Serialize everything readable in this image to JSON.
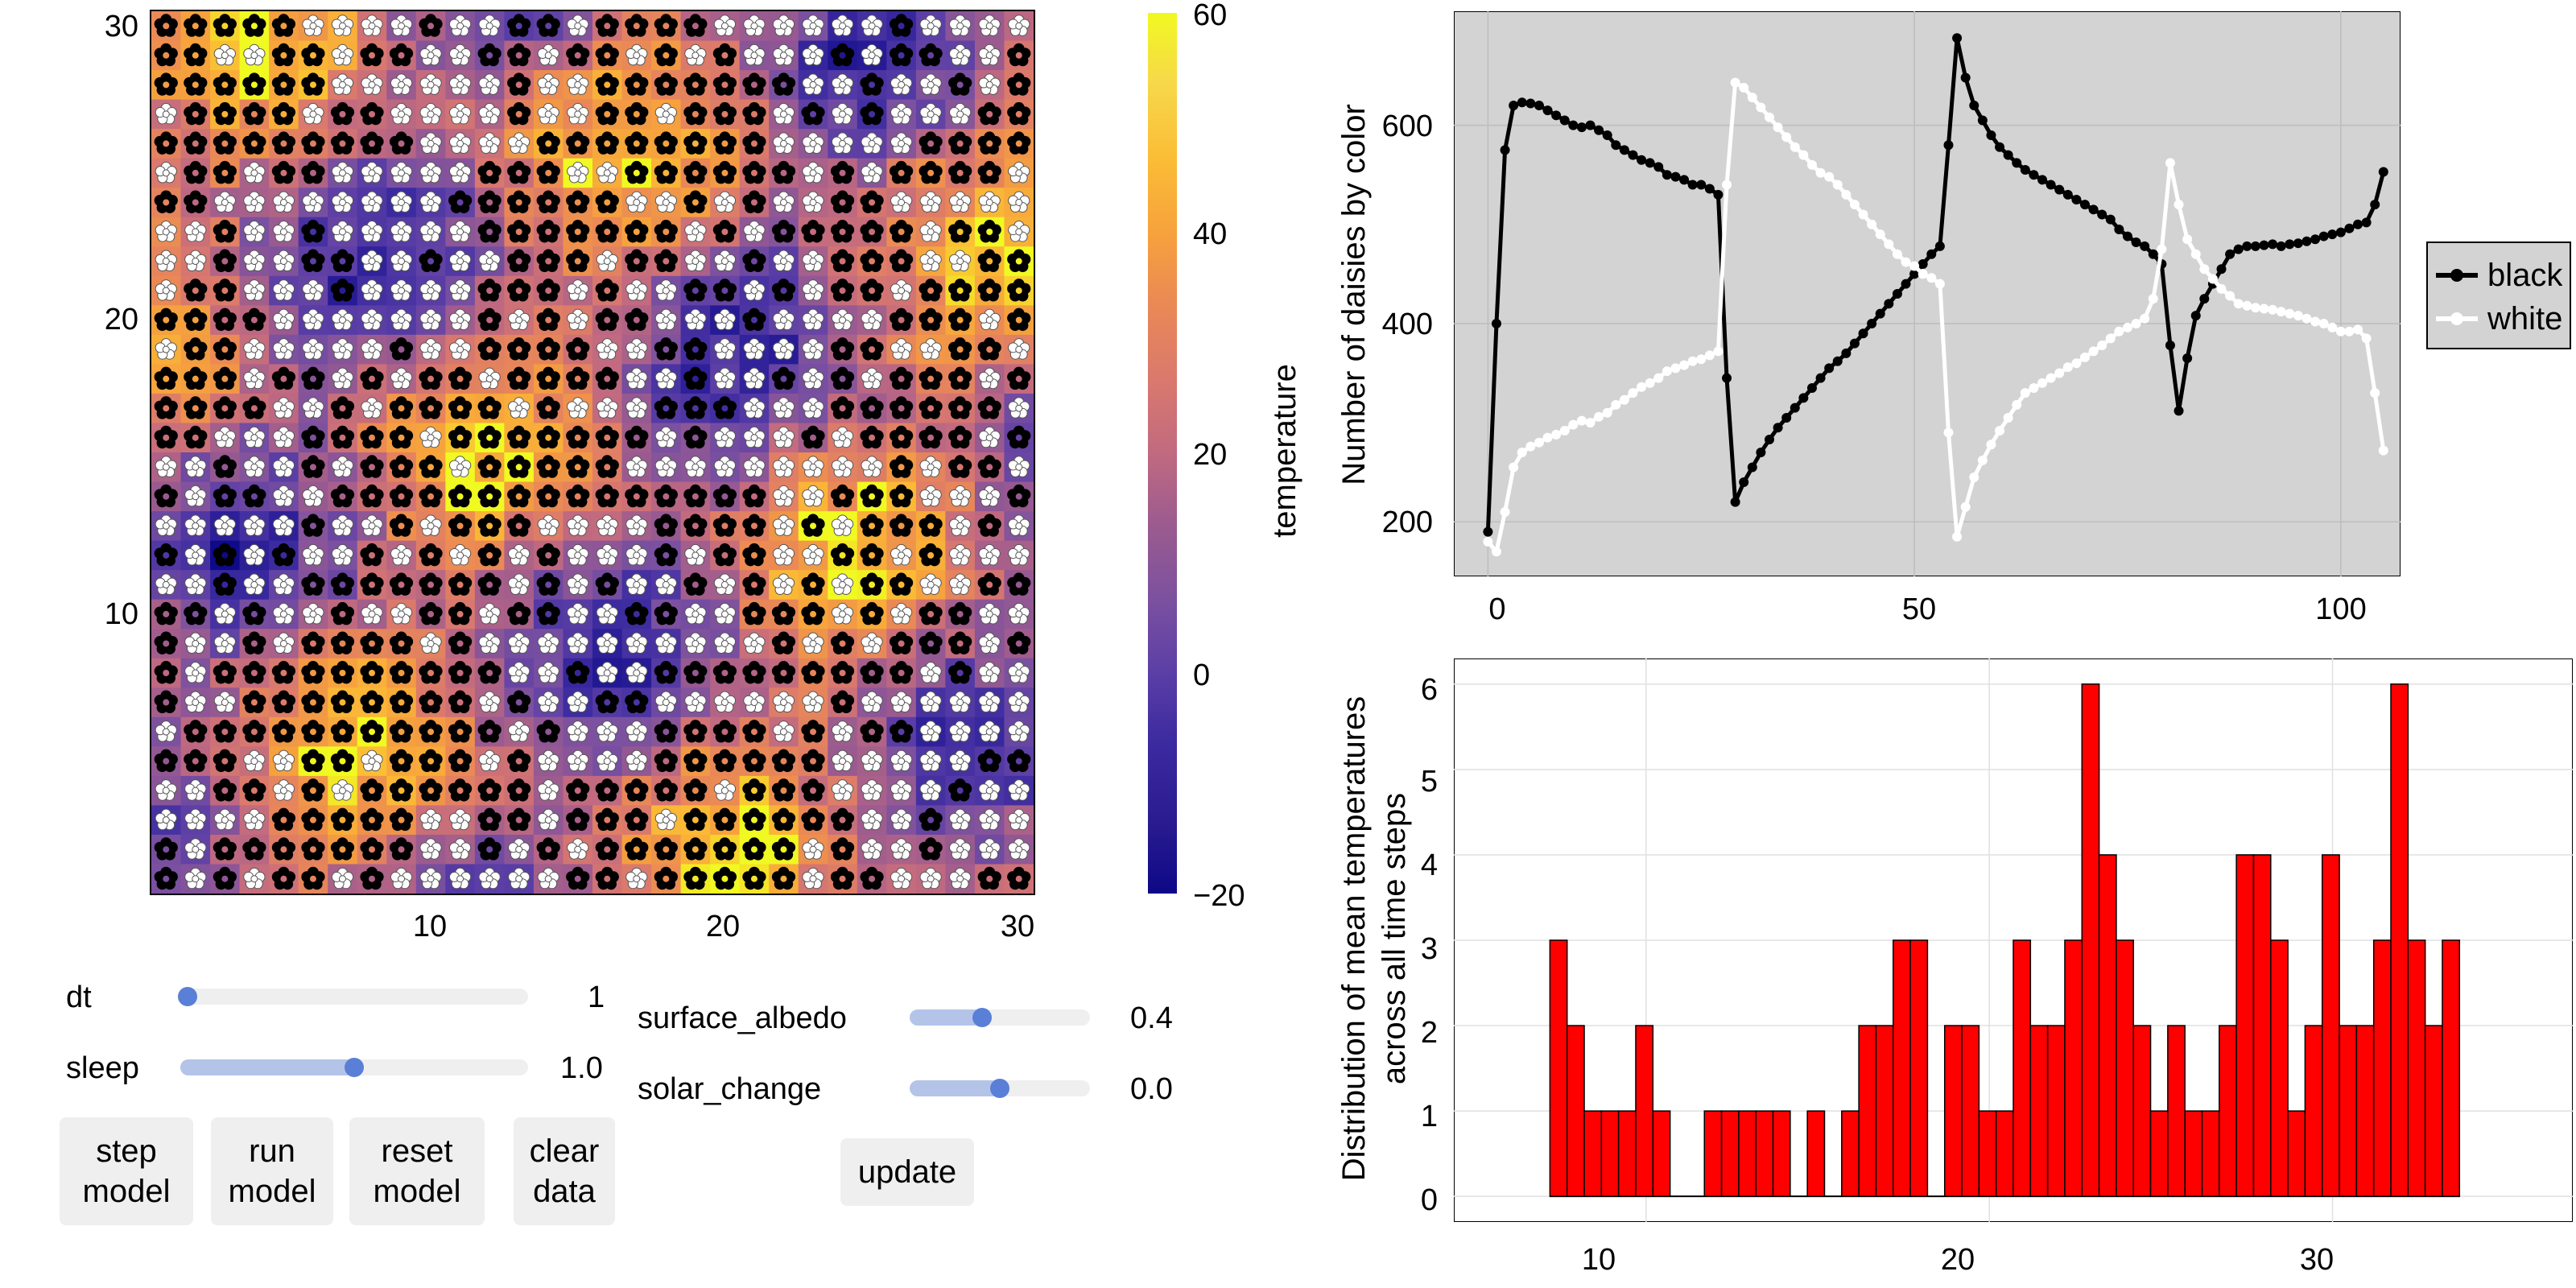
{
  "heatmap": {
    "x_ticks": [
      "10",
      "20",
      "30"
    ],
    "y_ticks": [
      "10",
      "20",
      "30"
    ],
    "colorbar": {
      "label": "temperature",
      "ticks": [
        "60",
        "40",
        "20",
        "0",
        "−20"
      ],
      "range": [
        -20,
        60
      ],
      "colormap": "plasma"
    }
  },
  "controls": {
    "sliders": [
      {
        "label": "dt",
        "value": "1",
        "fraction": 0.02
      },
      {
        "label": "sleep",
        "value": "1.0",
        "fraction": 0.5
      },
      {
        "label": "surface_albedo",
        "value": "0.4",
        "fraction": 0.4
      },
      {
        "label": "solar_change",
        "value": "0.0",
        "fraction": 0.5
      }
    ],
    "buttons": [
      {
        "line1": "step",
        "line2": "model"
      },
      {
        "line1": "run",
        "line2": "model"
      },
      {
        "line1": "reset",
        "line2": "model"
      },
      {
        "line1": "clear",
        "line2": "data"
      }
    ],
    "update_label": "update"
  },
  "chart_data": [
    {
      "type": "line",
      "ylabel": "Number of daisies by color",
      "xlabel": "",
      "xlim": [
        -4,
        107
      ],
      "ylim": [
        145,
        715
      ],
      "x_ticks": [
        "0",
        "50",
        "100"
      ],
      "y_ticks": [
        "200",
        "400",
        "600"
      ],
      "background": "#d3d3d3",
      "legend_position": "right",
      "series": [
        {
          "name": "black",
          "color": "#000000",
          "points": [
            [
              0,
              190
            ],
            [
              1,
              400
            ],
            [
              2,
              575
            ],
            [
              3,
              620
            ],
            [
              4,
              623
            ],
            [
              5,
              622
            ],
            [
              6,
              620
            ],
            [
              7,
              615
            ],
            [
              8,
              610
            ],
            [
              9,
              605
            ],
            [
              10,
              600
            ],
            [
              11,
              598
            ],
            [
              12,
              600
            ],
            [
              13,
              595
            ],
            [
              14,
              590
            ],
            [
              15,
              580
            ],
            [
              16,
              575
            ],
            [
              17,
              570
            ],
            [
              18,
              565
            ],
            [
              19,
              562
            ],
            [
              20,
              558
            ],
            [
              21,
              550
            ],
            [
              22,
              548
            ],
            [
              23,
              545
            ],
            [
              24,
              540
            ],
            [
              25,
              540
            ],
            [
              26,
              536
            ],
            [
              27,
              530
            ],
            [
              28,
              345
            ],
            [
              29,
              220
            ],
            [
              30,
              240
            ],
            [
              31,
              255
            ],
            [
              32,
              270
            ],
            [
              33,
              283
            ],
            [
              34,
              295
            ],
            [
              35,
              305
            ],
            [
              36,
              315
            ],
            [
              37,
              325
            ],
            [
              38,
              335
            ],
            [
              39,
              345
            ],
            [
              40,
              355
            ],
            [
              41,
              362
            ],
            [
              42,
              370
            ],
            [
              43,
              380
            ],
            [
              44,
              390
            ],
            [
              45,
              400
            ],
            [
              46,
              410
            ],
            [
              47,
              420
            ],
            [
              48,
              430
            ],
            [
              49,
              440
            ],
            [
              50,
              450
            ],
            [
              51,
              460
            ],
            [
              52,
              470
            ],
            [
              53,
              478
            ],
            [
              54,
              580
            ],
            [
              55,
              688
            ],
            [
              56,
              648
            ],
            [
              57,
              620
            ],
            [
              58,
              605
            ],
            [
              59,
              590
            ],
            [
              60,
              578
            ],
            [
              61,
              570
            ],
            [
              62,
              562
            ],
            [
              63,
              555
            ],
            [
              64,
              550
            ],
            [
              65,
              545
            ],
            [
              66,
              540
            ],
            [
              67,
              535
            ],
            [
              68,
              530
            ],
            [
              69,
              525
            ],
            [
              70,
              520
            ],
            [
              71,
              515
            ],
            [
              72,
              510
            ],
            [
              73,
              505
            ],
            [
              74,
              495
            ],
            [
              75,
              488
            ],
            [
              76,
              482
            ],
            [
              77,
              478
            ],
            [
              78,
              470
            ],
            [
              79,
              460
            ],
            [
              80,
              378
            ],
            [
              81,
              312
            ],
            [
              82,
              365
            ],
            [
              83,
              408
            ],
            [
              84,
              425
            ],
            [
              85,
              440
            ],
            [
              86,
              455
            ],
            [
              87,
              470
            ],
            [
              88,
              475
            ],
            [
              89,
              478
            ],
            [
              90,
              478
            ],
            [
              91,
              479
            ],
            [
              92,
              480
            ],
            [
              93,
              478
            ],
            [
              94,
              480
            ],
            [
              95,
              481
            ],
            [
              96,
              483
            ],
            [
              97,
              485
            ],
            [
              98,
              488
            ],
            [
              99,
              490
            ],
            [
              100,
              492
            ],
            [
              101,
              496
            ],
            [
              102,
              500
            ],
            [
              103,
              502
            ],
            [
              104,
              520
            ],
            [
              105,
              553
            ]
          ]
        },
        {
          "name": "white",
          "color": "#ffffff",
          "points": [
            [
              0,
              180
            ],
            [
              1,
              170
            ],
            [
              2,
              210
            ],
            [
              3,
              255
            ],
            [
              4,
              270
            ],
            [
              5,
              276
            ],
            [
              6,
              280
            ],
            [
              7,
              285
            ],
            [
              8,
              288
            ],
            [
              9,
              292
            ],
            [
              10,
              298
            ],
            [
              11,
              302
            ],
            [
              12,
              300
            ],
            [
              13,
              306
            ],
            [
              14,
              310
            ],
            [
              15,
              318
            ],
            [
              16,
              323
            ],
            [
              17,
              330
            ],
            [
              18,
              336
            ],
            [
              19,
              340
            ],
            [
              20,
              345
            ],
            [
              21,
              352
            ],
            [
              22,
              355
            ],
            [
              23,
              358
            ],
            [
              24,
              362
            ],
            [
              25,
              364
            ],
            [
              26,
              368
            ],
            [
              27,
              372
            ],
            [
              28,
              540
            ],
            [
              29,
              643
            ],
            [
              30,
              638
            ],
            [
              31,
              628
            ],
            [
              32,
              618
            ],
            [
              33,
              608
            ],
            [
              34,
              598
            ],
            [
              35,
              588
            ],
            [
              36,
              578
            ],
            [
              37,
              570
            ],
            [
              38,
              560
            ],
            [
              39,
              552
            ],
            [
              40,
              548
            ],
            [
              41,
              540
            ],
            [
              42,
              530
            ],
            [
              43,
              520
            ],
            [
              44,
              510
            ],
            [
              45,
              500
            ],
            [
              46,
              490
            ],
            [
              47,
              480
            ],
            [
              48,
              470
            ],
            [
              49,
              462
            ],
            [
              50,
              458
            ],
            [
              51,
              450
            ],
            [
              52,
              446
            ],
            [
              53,
              440
            ],
            [
              54,
              290
            ],
            [
              55,
              185
            ],
            [
              56,
              215
            ],
            [
              57,
              245
            ],
            [
              58,
              262
            ],
            [
              59,
              278
            ],
            [
              60,
              292
            ],
            [
              61,
              305
            ],
            [
              62,
              318
            ],
            [
              63,
              330
            ],
            [
              64,
              335
            ],
            [
              65,
              340
            ],
            [
              66,
              345
            ],
            [
              67,
              350
            ],
            [
              68,
              356
            ],
            [
              69,
              360
            ],
            [
              70,
              366
            ],
            [
              71,
              372
            ],
            [
              72,
              378
            ],
            [
              73,
              385
            ],
            [
              74,
              392
            ],
            [
              75,
              396
            ],
            [
              76,
              400
            ],
            [
              77,
              405
            ],
            [
              78,
              425
            ],
            [
              79,
              475
            ],
            [
              80,
              562
            ],
            [
              81,
              520
            ],
            [
              82,
              485
            ],
            [
              83,
              470
            ],
            [
              84,
              455
            ],
            [
              85,
              445
            ],
            [
              86,
              435
            ],
            [
              87,
              428
            ],
            [
              88,
              420
            ],
            [
              89,
              418
            ],
            [
              90,
              416
            ],
            [
              91,
              415
            ],
            [
              92,
              414
            ],
            [
              93,
              412
            ],
            [
              94,
              410
            ],
            [
              95,
              408
            ],
            [
              96,
              405
            ],
            [
              97,
              402
            ],
            [
              98,
              400
            ],
            [
              99,
              396
            ],
            [
              100,
              392
            ],
            [
              101,
              392
            ],
            [
              102,
              394
            ],
            [
              103,
              385
            ],
            [
              104,
              330
            ],
            [
              105,
              272
            ]
          ]
        }
      ]
    },
    {
      "type": "bar",
      "ylabel": "Distribution of mean temperatures\nacross all time steps",
      "xlabel": "",
      "xlim": [
        4.4,
        37.0
      ],
      "ylim": [
        -0.3,
        6.3
      ],
      "x_ticks": [
        "10",
        "20",
        "30"
      ],
      "y_ticks": [
        "0",
        "1",
        "2",
        "3",
        "4",
        "5",
        "6"
      ],
      "bar_color": "#ff0000",
      "bin_start": 7.2,
      "bin_width": 0.5,
      "values": [
        3,
        2,
        1,
        1,
        1,
        2,
        1,
        0,
        0,
        1,
        1,
        1,
        1,
        1,
        0,
        1,
        0,
        1,
        2,
        2,
        3,
        3,
        0,
        2,
        2,
        1,
        1,
        3,
        2,
        2,
        3,
        6,
        4,
        3,
        2,
        1,
        2,
        1,
        1,
        2,
        4,
        4,
        3,
        1,
        2,
        4,
        2,
        2,
        3,
        6,
        3,
        2,
        3
      ]
    }
  ]
}
